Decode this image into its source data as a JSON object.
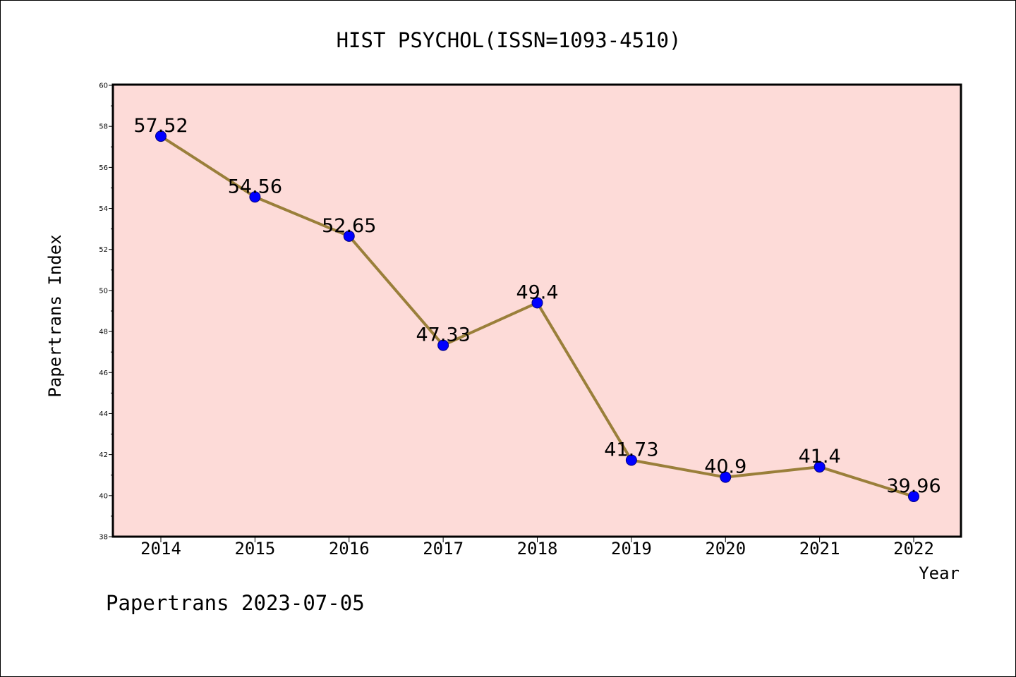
{
  "chart_data": {
    "type": "line",
    "title": "HIST PSYCHOL(ISSN=1093-4510)",
    "xlabel": "Year",
    "ylabel": "Papertrans Index",
    "footer": "Papertrans 2023-07-05",
    "x": [
      "2014",
      "2015",
      "2016",
      "2017",
      "2018",
      "2019",
      "2020",
      "2021",
      "2022"
    ],
    "values": [
      57.52,
      54.56,
      52.65,
      47.33,
      49.4,
      41.73,
      40.9,
      41.4,
      39.96
    ],
    "labels": [
      "57.52",
      "54.56",
      "52.65",
      "47.33",
      "49.4",
      "41.73",
      "40.9",
      "41.4",
      "39.96"
    ],
    "ylim": [
      38,
      60
    ],
    "yticks": [
      38,
      40,
      42,
      44,
      46,
      48,
      50,
      52,
      54,
      56,
      58,
      60
    ],
    "grid": false,
    "legend": "none",
    "colors": {
      "plot_background": "#fddbd8",
      "line": "#9a7f3a",
      "marker": "#0000ff",
      "marker_edge": "#000080"
    }
  }
}
